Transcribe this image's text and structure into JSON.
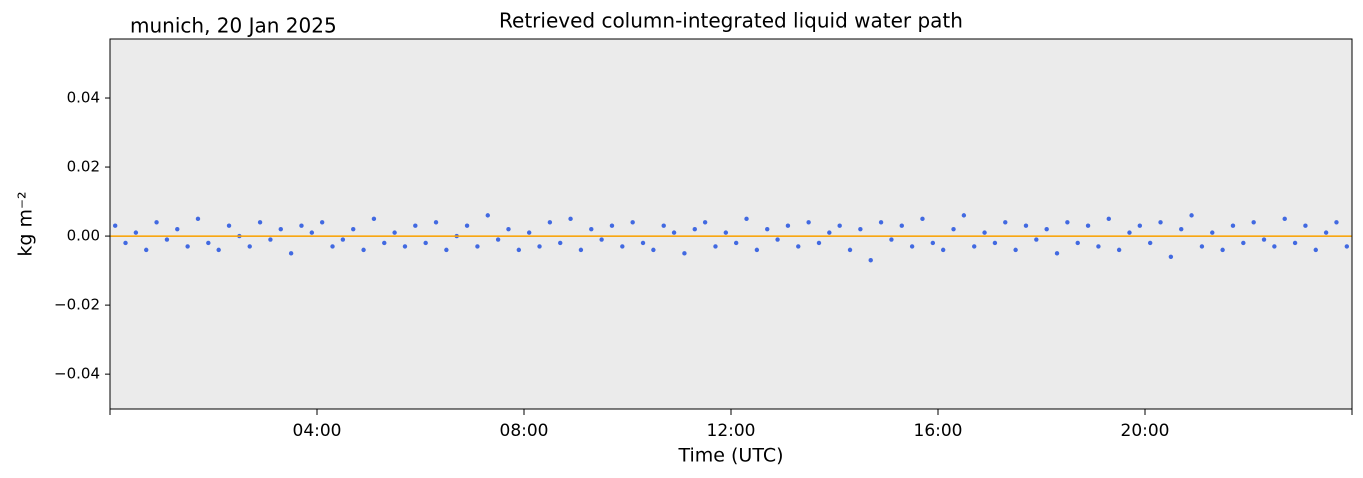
{
  "chart_data": {
    "type": "scatter",
    "title": "Retrieved column-integrated liquid water path",
    "subtitle": "munich, 20 Jan 2025",
    "xlabel": "Time (UTC)",
    "ylabel": "kg m⁻²",
    "xlim": [
      0,
      24
    ],
    "xticks": [
      {
        "value": 4,
        "label": "04:00"
      },
      {
        "value": 8,
        "label": "08:00"
      },
      {
        "value": 12,
        "label": "12:00"
      },
      {
        "value": 16,
        "label": "16:00"
      },
      {
        "value": 20,
        "label": "20:00"
      }
    ],
    "ylim": [
      -0.0501,
      0.0571
    ],
    "yticks": [
      {
        "value": -0.04,
        "label": "−0.04"
      },
      {
        "value": -0.02,
        "label": "−0.02"
      },
      {
        "value": 0,
        "label": "0.00"
      },
      0.02,
      0.04
    ],
    "hline": 0,
    "series": [
      {
        "color": "#4169e1",
        "x": [
          0.1,
          0.3,
          0.5,
          0.7,
          0.9,
          1.1,
          1.3,
          1.5,
          1.7,
          1.9,
          2.1,
          2.3,
          2.5,
          2.7,
          2.9,
          3.1,
          3.3,
          3.5,
          3.7,
          3.9,
          4.1,
          4.3,
          4.5,
          4.7,
          4.9,
          5.1,
          5.3,
          5.5,
          5.7,
          5.9,
          6.1,
          6.3,
          6.5,
          6.7,
          6.9,
          7.1,
          7.3,
          7.5,
          7.7,
          7.9,
          8.1,
          8.3,
          8.5,
          8.7,
          8.9,
          9.1,
          9.3,
          9.5,
          9.7,
          9.9,
          10.1,
          10.3,
          10.5,
          10.7,
          10.9,
          11.1,
          11.3,
          11.5,
          11.7,
          11.9,
          12.1,
          12.3,
          12.5,
          12.7,
          12.9,
          13.1,
          13.3,
          13.5,
          13.7,
          13.9,
          14.1,
          14.3,
          14.5,
          14.7,
          14.9,
          15.1,
          15.3,
          15.5,
          15.7,
          15.9,
          16.1,
          16.3,
          16.5,
          16.7,
          16.9,
          17.1,
          17.3,
          17.5,
          17.7,
          17.9,
          18.1,
          18.3,
          18.5,
          18.7,
          18.9,
          19.1,
          19.3,
          19.5,
          19.7,
          19.9,
          20.1,
          20.3,
          20.5,
          20.7,
          20.9,
          21.1,
          21.3,
          21.5,
          21.7,
          21.9,
          22.1,
          22.3,
          22.5,
          22.7,
          22.9,
          23.1,
          23.3,
          23.5,
          23.7,
          23.9
        ],
        "values": [
          0.003,
          -0.002,
          0.001,
          -0.004,
          0.004,
          -0.001,
          0.002,
          -0.003,
          0.005,
          -0.002,
          -0.004,
          0.003,
          0.0,
          -0.003,
          0.004,
          -0.001,
          0.002,
          -0.005,
          0.003,
          0.001,
          0.004,
          -0.003,
          -0.001,
          0.002,
          -0.004,
          0.005,
          -0.002,
          0.001,
          -0.003,
          0.003,
          -0.002,
          0.004,
          -0.004,
          0.0,
          0.003,
          -0.003,
          0.006,
          -0.001,
          0.002,
          -0.004,
          0.001,
          -0.003,
          0.004,
          -0.002,
          0.005,
          -0.004,
          0.002,
          -0.001,
          0.003,
          -0.003,
          0.004,
          -0.002,
          -0.004,
          0.003,
          0.001,
          -0.005,
          0.002,
          0.004,
          -0.003,
          0.001,
          -0.002,
          0.005,
          -0.004,
          0.002,
          -0.001,
          0.003,
          -0.003,
          0.004,
          -0.002,
          0.001,
          0.003,
          -0.004,
          0.002,
          -0.007,
          0.004,
          -0.001,
          0.003,
          -0.003,
          0.005,
          -0.002,
          -0.004,
          0.002,
          0.006,
          -0.003,
          0.001,
          -0.002,
          0.004,
          -0.004,
          0.003,
          -0.001,
          0.002,
          -0.005,
          0.004,
          -0.002,
          0.003,
          -0.003,
          0.005,
          -0.004,
          0.001,
          0.003,
          -0.002,
          0.004,
          -0.006,
          0.002,
          0.006,
          -0.003,
          0.001,
          -0.004,
          0.003,
          -0.002,
          0.004,
          -0.001,
          -0.003,
          0.005,
          -0.002,
          0.003,
          -0.004,
          0.001,
          0.004,
          -0.003
        ]
      },
      {
        "color": "#ffa500",
        "line": true,
        "x": [
          0,
          2,
          4,
          6,
          8,
          10,
          12,
          14,
          16,
          18,
          20,
          22,
          24
        ],
        "values": [
          0,
          0,
          0,
          0,
          0,
          0,
          0,
          0,
          0,
          0,
          0,
          0,
          0
        ]
      }
    ]
  }
}
